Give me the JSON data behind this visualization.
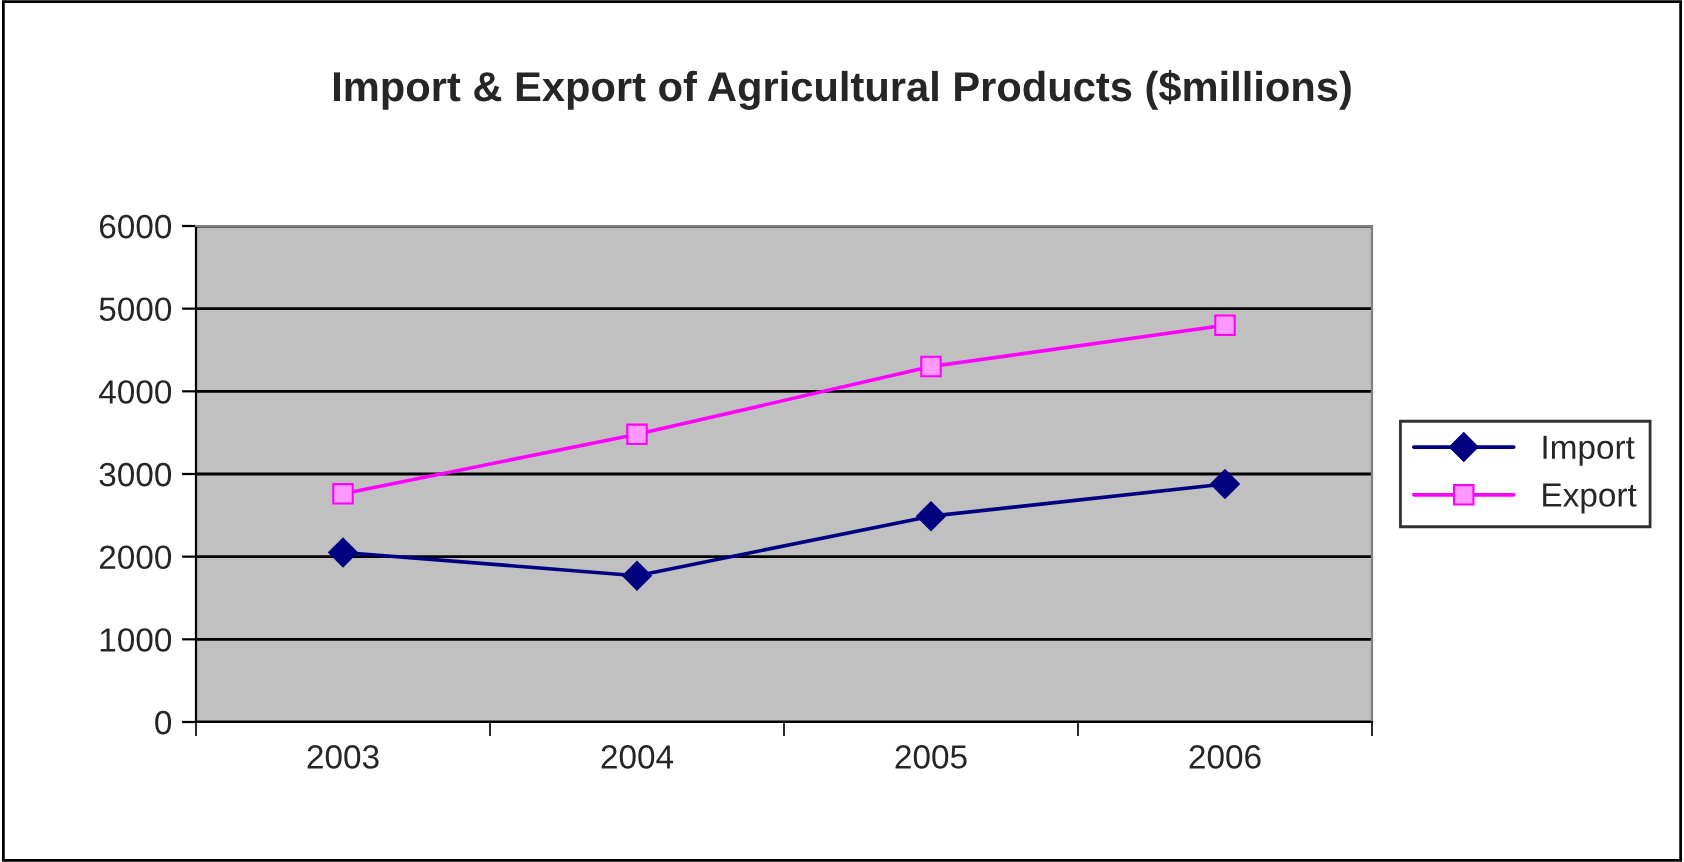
{
  "chart_data": {
    "type": "line",
    "title": "Import & Export of Agricultural Products ($millions)",
    "categories": [
      "2003",
      "2004",
      "2005",
      "2006"
    ],
    "series": [
      {
        "name": "Import",
        "color": "#000080",
        "marker": "diamond",
        "values": [
          2050,
          1770,
          2490,
          2880
        ]
      },
      {
        "name": "Export",
        "color": "#ff00ff",
        "marker": "square",
        "values": [
          2760,
          3480,
          4300,
          4800
        ]
      }
    ],
    "ylim": [
      0,
      6000
    ],
    "yticks": [
      0,
      1000,
      2000,
      3000,
      4000,
      5000,
      6000
    ],
    "grid": "y",
    "legend": "right"
  }
}
